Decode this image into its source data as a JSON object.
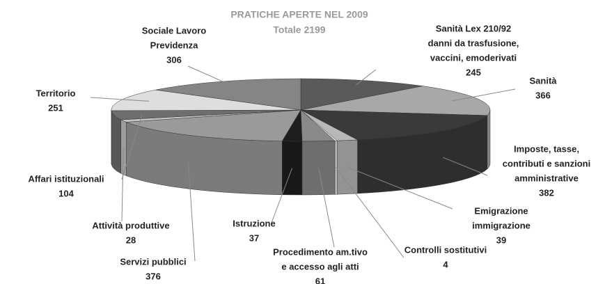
{
  "chart_data": {
    "type": "pie3d",
    "title": "PRATICHE APERTE NEL 2009",
    "subtitle": "Totale 2199",
    "categories": [
      [
        "Sanità Lex 210/92",
        "danni da trasfusione,",
        "vaccini, emoderivati"
      ],
      [
        "Sanità"
      ],
      [
        "Imposte, tasse,",
        "contributi e sanzioni",
        "amministrative"
      ],
      [
        "Emigrazione",
        "immigrazione"
      ],
      [
        "Controlli sostitutivi"
      ],
      [
        "Procedimento am.tivo",
        "e accesso agli atti"
      ],
      [
        "Istruzione"
      ],
      [
        "Servizi pubblici"
      ],
      [
        "Attività produttive"
      ],
      [
        "Affari istituzionali"
      ],
      [
        "Territorio"
      ],
      [
        "Sociale Lavoro",
        "Previdenza"
      ]
    ],
    "values": [
      245,
      366,
      382,
      39,
      4,
      61,
      37,
      376,
      28,
      104,
      251,
      306
    ],
    "colors": [
      "#5a5a5a",
      "#a8a8a8",
      "#3a3a3a",
      "#b8b8b8",
      "#f2f2f2",
      "#8a8a8a",
      "#1e1e1e",
      "#9a9a9a",
      "#c4c4c4",
      "#6e6e6e",
      "#dedede",
      "#858585"
    ]
  }
}
